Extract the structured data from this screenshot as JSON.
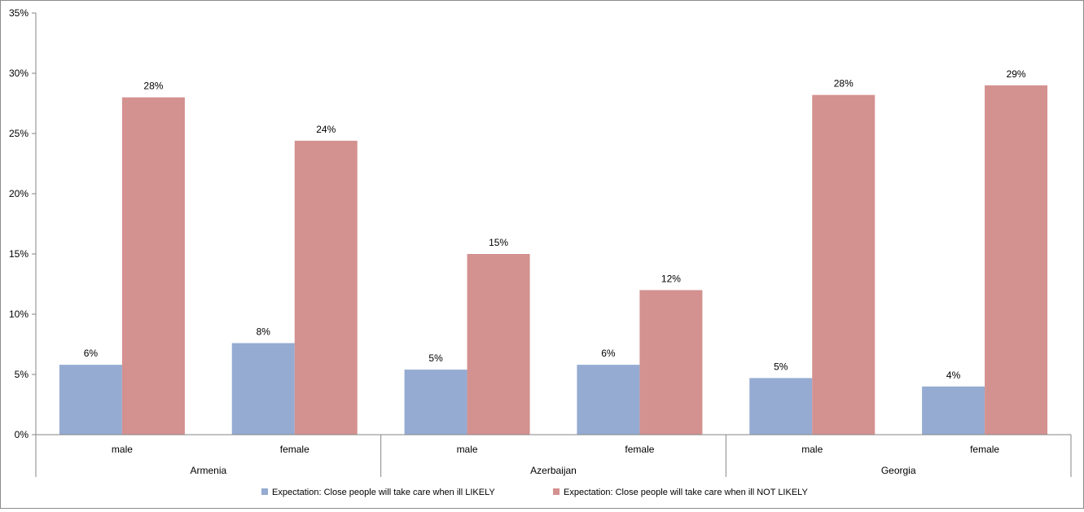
{
  "chart_data": {
    "type": "bar",
    "groups": [
      "Armenia",
      "Azerbaijan",
      "Georgia"
    ],
    "categories": [
      "male",
      "female",
      "male",
      "female",
      "male",
      "female"
    ],
    "series": [
      {
        "name": "Expectation: Close people will take care when ill LIKELY",
        "color": "#95abd2",
        "values": [
          5.8,
          7.6,
          5.4,
          5.8,
          4.7,
          4.0
        ],
        "labels": [
          "6%",
          "8%",
          "5%",
          "6%",
          "5%",
          "4%"
        ]
      },
      {
        "name": "Expectation: Close people will take care when ill NOT LIKELY",
        "color": "#d39190",
        "values": [
          28.0,
          24.4,
          15.0,
          12.0,
          28.2,
          29.0
        ],
        "labels": [
          "28%",
          "24%",
          "15%",
          "12%",
          "28%",
          "29%"
        ]
      }
    ],
    "ylim": [
      0,
      35
    ],
    "yticks": [
      "0%",
      "5%",
      "10%",
      "15%",
      "20%",
      "25%",
      "30%",
      "35%"
    ],
    "grid": false,
    "legend": "bottom"
  }
}
